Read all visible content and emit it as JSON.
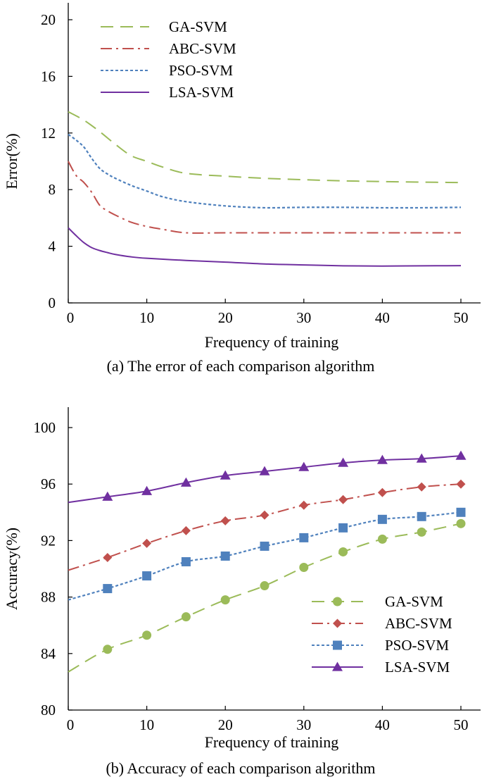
{
  "chart_data": [
    {
      "type": "line",
      "caption": "(a) The error of each comparison algorithm",
      "xlabel": "Frequency of training",
      "ylabel": "Error(%)",
      "xlim": [
        0,
        50
      ],
      "ylim": [
        0,
        20
      ],
      "xticks": [
        0,
        10,
        20,
        30,
        40,
        50
      ],
      "yticks": [
        0,
        4,
        8,
        12,
        16,
        20
      ],
      "grid": false,
      "legend": "top-left",
      "series": [
        {
          "name": "GA-SVM",
          "color": "#9bbb59",
          "dash": "long-dash",
          "x": [
            0,
            2,
            4,
            6,
            8,
            10,
            12,
            15,
            20,
            25,
            30,
            35,
            40,
            45,
            50
          ],
          "y": [
            13.5,
            12.9,
            12.1,
            11.2,
            10.4,
            10.0,
            9.6,
            9.15,
            8.95,
            8.8,
            8.7,
            8.62,
            8.57,
            8.53,
            8.5
          ]
        },
        {
          "name": "ABC-SVM",
          "color": "#c0504d",
          "dash": "dash-dot",
          "x": [
            0,
            1,
            2,
            3,
            4,
            5,
            6,
            8,
            10,
            12,
            15,
            20,
            25,
            30,
            40,
            50
          ],
          "y": [
            10.0,
            9.0,
            8.5,
            7.8,
            6.9,
            6.5,
            6.2,
            5.7,
            5.4,
            5.2,
            4.95,
            4.95,
            4.95,
            4.95,
            4.95,
            4.95
          ]
        },
        {
          "name": "PSO-SVM",
          "color": "#4f81bd",
          "dash": "dot",
          "x": [
            0,
            1,
            2,
            3,
            4,
            5,
            6,
            8,
            10,
            12,
            15,
            20,
            25,
            30,
            35,
            40,
            45,
            50
          ],
          "y": [
            11.9,
            11.5,
            11.0,
            10.2,
            9.5,
            9.1,
            8.8,
            8.3,
            7.9,
            7.5,
            7.15,
            6.85,
            6.72,
            6.75,
            6.75,
            6.72,
            6.72,
            6.75
          ]
        },
        {
          "name": "LSA-SVM",
          "color": "#7030a0",
          "dash": "solid",
          "x": [
            0,
            1,
            2,
            3,
            4,
            5,
            6,
            8,
            10,
            15,
            20,
            25,
            30,
            35,
            40,
            45,
            50
          ],
          "y": [
            5.3,
            4.75,
            4.25,
            3.9,
            3.7,
            3.55,
            3.42,
            3.25,
            3.15,
            3.0,
            2.88,
            2.75,
            2.68,
            2.62,
            2.6,
            2.62,
            2.63
          ]
        }
      ]
    },
    {
      "type": "line",
      "caption": "(b) Accuracy of each comparison algorithm",
      "xlabel": "Frequency of training",
      "ylabel": "Accuracy(%)",
      "xlim": [
        0,
        50
      ],
      "ylim": [
        80,
        100
      ],
      "xticks": [
        0,
        10,
        20,
        30,
        40,
        50
      ],
      "yticks": [
        80,
        84,
        88,
        92,
        96,
        100
      ],
      "grid": false,
      "legend": "bottom-right",
      "series": [
        {
          "name": "GA-SVM",
          "color": "#9bbb59",
          "dash": "long-dash",
          "marker": "circle",
          "x": [
            0,
            5,
            10,
            15,
            20,
            25,
            30,
            35,
            40,
            45,
            50
          ],
          "y": [
            82.7,
            84.3,
            85.3,
            86.6,
            87.8,
            88.8,
            90.1,
            91.2,
            92.1,
            92.6,
            93.2
          ]
        },
        {
          "name": "ABC-SVM",
          "color": "#c0504d",
          "dash": "dash-dot",
          "marker": "diamond",
          "x": [
            0,
            5,
            10,
            15,
            20,
            25,
            30,
            35,
            40,
            45,
            50
          ],
          "y": [
            89.9,
            90.8,
            91.8,
            92.7,
            93.4,
            93.8,
            94.5,
            94.9,
            95.4,
            95.8,
            96.0
          ]
        },
        {
          "name": "PSO-SVM",
          "color": "#4f81bd",
          "dash": "dot",
          "marker": "square",
          "x": [
            0,
            5,
            10,
            15,
            20,
            25,
            30,
            35,
            40,
            45,
            50
          ],
          "y": [
            87.8,
            88.6,
            89.5,
            90.5,
            90.9,
            91.6,
            92.2,
            92.9,
            93.5,
            93.7,
            94.0
          ]
        },
        {
          "name": "LSA-SVM",
          "color": "#7030a0",
          "dash": "solid",
          "marker": "triangle",
          "x": [
            0,
            5,
            10,
            15,
            20,
            25,
            30,
            35,
            40,
            45,
            50
          ],
          "y": [
            94.7,
            95.1,
            95.5,
            96.1,
            96.6,
            96.9,
            97.2,
            97.5,
            97.7,
            97.8,
            98.0
          ]
        }
      ]
    }
  ]
}
